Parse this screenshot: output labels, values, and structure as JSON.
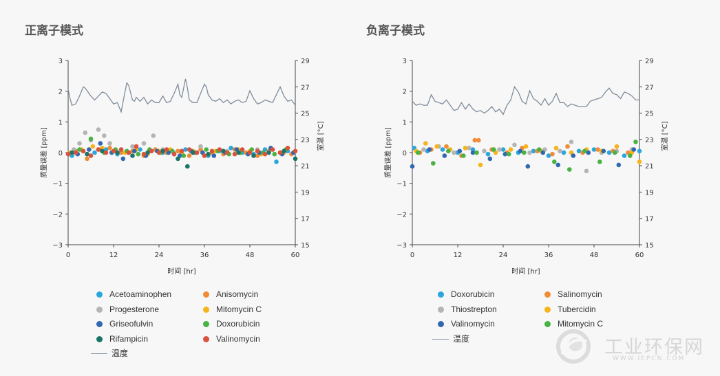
{
  "watermark": {
    "name": "工业环保网",
    "url": "WWW.IEPCN.COM"
  },
  "chart_data": [
    {
      "type": "scatter",
      "title": "正离子模式",
      "xlabel": "时间 [hr]",
      "ylabel": "质量误差 [ppm]",
      "y2label": "室温 [°C]",
      "xlim": [
        0,
        60
      ],
      "ylim": [
        -3,
        3
      ],
      "y2lim": [
        15,
        29
      ],
      "xticks": [
        "0",
        "12",
        "24",
        "36",
        "48",
        "60"
      ],
      "yticks": [
        "3",
        "2",
        "1",
        "0",
        "−1",
        "−2",
        "−3"
      ],
      "y2ticks": [
        "29",
        "27",
        "25",
        "23",
        "21",
        "19",
        "17",
        "15"
      ],
      "legend_position": "bottom",
      "line": {
        "name": "温度",
        "color": "#7f8c9c",
        "x": [
          0,
          0.5,
          1,
          2,
          3,
          4,
          4.5,
          5,
          6,
          7,
          8,
          9,
          10,
          11,
          12,
          13,
          14,
          15,
          15.5,
          16,
          17,
          17.5,
          18,
          19,
          20,
          21,
          22,
          23,
          24,
          25,
          26,
          27,
          28,
          29,
          29.5,
          30,
          31,
          31.5,
          32,
          33,
          34,
          35,
          36,
          36.5,
          37,
          38,
          39,
          40,
          41,
          42,
          43,
          44,
          45,
          46,
          47,
          48,
          49,
          50,
          51,
          52,
          53,
          54,
          55,
          56,
          57,
          58,
          59,
          60
        ],
        "y": [
          26.8,
          26.1,
          25.6,
          25.7,
          26.3,
          27.0,
          26.9,
          26.7,
          26.3,
          26.0,
          26.3,
          26.6,
          26.5,
          26.1,
          25.7,
          25.8,
          25.1,
          26.6,
          27.3,
          27.1,
          26.0,
          25.9,
          26.2,
          25.9,
          26.2,
          25.7,
          26.0,
          25.8,
          25.8,
          26.3,
          25.8,
          25.9,
          26.5,
          27.2,
          26.4,
          26.2,
          27.6,
          26.9,
          26.0,
          25.8,
          25.8,
          26.5,
          27.2,
          27.0,
          26.4,
          26.0,
          25.9,
          26.1,
          25.8,
          26.0,
          25.7,
          25.9,
          26.0,
          25.8,
          25.9,
          26.7,
          26.1,
          25.7,
          25.8,
          26.0,
          25.9,
          25.8,
          26.4,
          27.0,
          26.3,
          25.9,
          26.0,
          25.6
        ]
      },
      "series": [
        {
          "name": "Acetoaminophen",
          "color": "#2aa6dd",
          "x": [
            1,
            4,
            7,
            10,
            13,
            16,
            19,
            22,
            25,
            28,
            31,
            34,
            37,
            40,
            43,
            46,
            49,
            52,
            55,
            58
          ],
          "y": [
            -0.1,
            0.05,
            0.0,
            0.1,
            -0.05,
            0.0,
            0.1,
            0.05,
            0.0,
            -0.05,
            0.1,
            0.0,
            -0.1,
            0.05,
            0.15,
            0.0,
            -0.05,
            0.1,
            -0.3,
            0.05
          ]
        },
        {
          "name": "Anisomycin",
          "color": "#f08b36",
          "x": [
            2,
            5,
            8,
            11,
            14,
            17,
            20,
            23,
            26,
            29,
            32,
            35,
            38,
            41,
            44,
            47,
            50,
            53,
            56,
            59
          ],
          "y": [
            0.05,
            -0.2,
            0.1,
            0.15,
            0.0,
            0.05,
            -0.1,
            0.1,
            0.0,
            0.05,
            -0.1,
            0.1,
            0.0,
            -0.05,
            0.1,
            0.0,
            -0.1,
            0.05,
            0.0,
            -0.05
          ]
        },
        {
          "name": "Progesterone",
          "color": "#b4b4b4",
          "x": [
            1.5,
            3,
            4.5,
            6,
            8,
            9.5,
            11,
            14,
            17,
            20,
            22.5,
            25,
            28,
            35,
            42,
            50,
            57
          ],
          "y": [
            0.1,
            0.3,
            0.65,
            0.4,
            0.75,
            0.55,
            0.3,
            0.1,
            0.2,
            0.3,
            0.55,
            0.1,
            0.0,
            0.2,
            0.05,
            0.1,
            0.0
          ]
        },
        {
          "name": "Mitomycin C",
          "color": "#f6b41c",
          "x": [
            0.5,
            3.5,
            6.5,
            9,
            12,
            15,
            18,
            21,
            24,
            27,
            30,
            33,
            36,
            39,
            42,
            45,
            48,
            51,
            54,
            57,
            60
          ],
          "y": [
            0.0,
            0.1,
            0.2,
            0.15,
            0.05,
            0.0,
            0.1,
            -0.05,
            0.05,
            0.1,
            0.0,
            0.05,
            -0.1,
            0.05,
            0.0,
            0.1,
            0.05,
            -0.05,
            0.1,
            0.0,
            0.05
          ]
        },
        {
          "name": "Griseofulvin",
          "color": "#3168b0",
          "x": [
            2.5,
            5.5,
            8.5,
            11.5,
            14.5,
            17.5,
            20.5,
            23.5,
            26.5,
            29.5,
            32.5,
            35.5,
            38.5,
            41.5,
            44.5,
            47.5,
            50.5,
            53.5,
            56.5,
            59.5
          ],
          "y": [
            -0.05,
            0.1,
            0.3,
            0.0,
            -0.2,
            0.05,
            -0.1,
            0.05,
            0.0,
            -0.1,
            0.05,
            0.0,
            -0.1,
            0.0,
            0.1,
            -0.05,
            0.0,
            0.15,
            -0.05,
            0.0
          ]
        },
        {
          "name": "Doxorubicin",
          "color": "#48b245",
          "x": [
            3,
            6,
            9.5,
            12.5,
            15.5,
            18.5,
            21.5,
            24.5,
            27.5,
            30.5,
            33.5,
            36.5,
            39.5,
            42.5,
            45.5,
            48.5,
            51.5,
            54.5,
            57.5
          ],
          "y": [
            0.1,
            0.45,
            0.0,
            0.1,
            0.05,
            -0.05,
            0.1,
            0.0,
            0.05,
            -0.1,
            0.0,
            0.1,
            0.05,
            -0.05,
            0.0,
            0.1,
            0.0,
            -0.05,
            0.1
          ]
        },
        {
          "name": "Rifampicin",
          "color": "#1b7468",
          "x": [
            1,
            5,
            9,
            13,
            17,
            21,
            25,
            29,
            31.5,
            33,
            37,
            41,
            45,
            49,
            53,
            57,
            60
          ],
          "y": [
            0.0,
            -0.05,
            0.05,
            0.0,
            -0.1,
            0.0,
            0.05,
            -0.2,
            -0.45,
            0.0,
            -0.05,
            0.05,
            0.0,
            -0.1,
            0.0,
            0.05,
            -0.2
          ]
        },
        {
          "name": "Valinomycin",
          "color": "#d9523d",
          "x": [
            0,
            2,
            4,
            6,
            8,
            10,
            12,
            14,
            16,
            18,
            20,
            22,
            24,
            26,
            28,
            30,
            32,
            34,
            36,
            38,
            40,
            42,
            44,
            46,
            48,
            50,
            52,
            54,
            56,
            58,
            60
          ],
          "y": [
            -0.05,
            0.0,
            0.05,
            -0.1,
            0.1,
            0.0,
            0.05,
            0.1,
            0.0,
            0.2,
            -0.05,
            0.05,
            0.0,
            0.1,
            -0.05,
            0.05,
            0.1,
            0.0,
            -0.1,
            0.05,
            0.1,
            0.0,
            -0.05,
            0.1,
            0.0,
            0.05,
            -0.05,
            0.1,
            0.0,
            0.15,
            0.05
          ]
        }
      ]
    },
    {
      "type": "scatter",
      "title": "负离子模式",
      "xlabel": "时间 [hr]",
      "ylabel": "质量误差 [ppm]",
      "y2label": "室温 [°C]",
      "xlim": [
        0,
        60
      ],
      "ylim": [
        -3,
        3
      ],
      "y2lim": [
        15,
        29
      ],
      "xticks": [
        "0",
        "12",
        "24",
        "36",
        "48",
        "60"
      ],
      "yticks": [
        "3",
        "2",
        "1",
        "0",
        "−1",
        "−2",
        "−3"
      ],
      "y2ticks": [
        "29",
        "27",
        "25",
        "23",
        "21",
        "19",
        "17",
        "15"
      ],
      "legend_position": "bottom",
      "line": {
        "name": "温度",
        "color": "#7f8c9c",
        "x": [
          0,
          1,
          2,
          3,
          4,
          5,
          6,
          7,
          8,
          9,
          10,
          11,
          12,
          13,
          14,
          15,
          16,
          17,
          18,
          19,
          20,
          21,
          22,
          23,
          24,
          25,
          26,
          27,
          28,
          29,
          30,
          31,
          32,
          33,
          34,
          35,
          36,
          37,
          38,
          39,
          40,
          41,
          42,
          43,
          44,
          45,
          46,
          47,
          48,
          49,
          50,
          51,
          52,
          53,
          54,
          55,
          56,
          57,
          58,
          59,
          60
        ],
        "y": [
          25.9,
          25.6,
          25.7,
          25.6,
          25.6,
          26.4,
          25.9,
          25.8,
          25.7,
          26.0,
          25.6,
          25.2,
          25.3,
          25.8,
          25.3,
          25.7,
          25.3,
          25.1,
          25.2,
          25.0,
          25.2,
          25.5,
          25.1,
          25.3,
          24.9,
          25.6,
          26.0,
          27.0,
          26.6,
          25.9,
          25.7,
          26.7,
          26.1,
          25.9,
          25.6,
          26.1,
          25.6,
          25.9,
          26.5,
          25.8,
          25.8,
          25.5,
          25.7,
          25.6,
          25.5,
          25.5,
          25.5,
          25.9,
          26.0,
          26.1,
          26.2,
          26.6,
          26.9,
          26.5,
          26.4,
          26.1,
          26.6,
          26.5,
          26.3,
          26.0,
          26.0
        ]
      },
      "series": [
        {
          "name": "Doxorubicin",
          "color": "#2aa6dd",
          "x": [
            0.5,
            4,
            8,
            12,
            16,
            20,
            24,
            28,
            32,
            36,
            40,
            44,
            48,
            52,
            56,
            60
          ],
          "y": [
            0.15,
            0.05,
            0.1,
            0.0,
            0.1,
            -0.05,
            0.1,
            0.0,
            0.05,
            -0.1,
            0.0,
            0.05,
            0.1,
            0.0,
            -0.1,
            0.05
          ]
        },
        {
          "name": "Salinomycin",
          "color": "#f08b36",
          "x": [
            2,
            5,
            9,
            13,
            16.5,
            17.5,
            21,
            25,
            29,
            33,
            37,
            41,
            45,
            49,
            53,
            57
          ],
          "y": [
            0.0,
            0.1,
            0.2,
            -0.1,
            0.4,
            0.4,
            0.1,
            0.0,
            0.15,
            0.05,
            -0.05,
            0.2,
            0.0,
            0.1,
            0.05,
            0.0
          ]
        },
        {
          "name": "Thiostrepton",
          "color": "#b4b4b4",
          "x": [
            3,
            7,
            11,
            15,
            19,
            23,
            27,
            31,
            35,
            39,
            42,
            46,
            50,
            54,
            58
          ],
          "y": [
            0.1,
            0.2,
            0.0,
            0.15,
            0.05,
            0.1,
            0.25,
            0.0,
            0.1,
            0.05,
            0.35,
            -0.6,
            0.0,
            0.05,
            0.1
          ]
        },
        {
          "name": "Tubercidin",
          "color": "#f6b41c",
          "x": [
            1,
            3.5,
            6.5,
            10,
            14,
            18,
            22,
            26,
            30,
            34,
            38,
            42,
            46,
            50,
            54,
            58,
            60
          ],
          "y": [
            0.05,
            0.3,
            0.2,
            0.1,
            0.15,
            -0.4,
            0.0,
            0.1,
            0.2,
            0.05,
            0.15,
            0.0,
            0.1,
            0.05,
            0.2,
            0.0,
            -0.3
          ]
        },
        {
          "name": "Valinomycin",
          "color": "#3168b0",
          "x": [
            0,
            4.5,
            8.5,
            12.5,
            16,
            20.5,
            24.5,
            28.5,
            30.5,
            34.5,
            38.5,
            42.5,
            46.5,
            50.5,
            54.5,
            58.5
          ],
          "y": [
            -0.45,
            0.1,
            -0.1,
            0.05,
            0.0,
            -0.2,
            -0.05,
            0.05,
            -0.45,
            0.0,
            -0.4,
            -0.1,
            0.0,
            0.05,
            -0.4,
            0.1
          ]
        },
        {
          "name": "Mitomycin C",
          "color": "#48b245",
          "x": [
            1.5,
            5.5,
            9.5,
            13.5,
            17,
            21.5,
            25.5,
            29.5,
            33.5,
            37.5,
            41.5,
            45.5,
            49.5,
            53.5,
            57.5,
            59
          ],
          "y": [
            0.0,
            -0.35,
            0.05,
            -0.1,
            0.0,
            0.1,
            -0.05,
            0.0,
            0.1,
            -0.3,
            -0.55,
            0.05,
            -0.3,
            0.0,
            -0.1,
            0.35
          ]
        }
      ]
    }
  ]
}
